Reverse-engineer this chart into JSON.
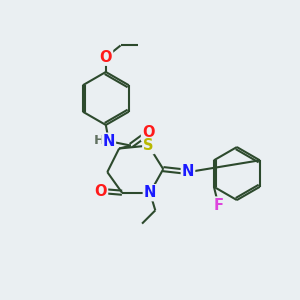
{
  "bg_color": "#eaeff2",
  "bond_color": "#2d4a2d",
  "bond_width": 1.5,
  "atom_colors": {
    "N": "#1a1aff",
    "O": "#ff1a1a",
    "S": "#b8b800",
    "F": "#dd44dd",
    "H": "#607060",
    "C": "#2d4a2d"
  },
  "font_size": 10.5
}
